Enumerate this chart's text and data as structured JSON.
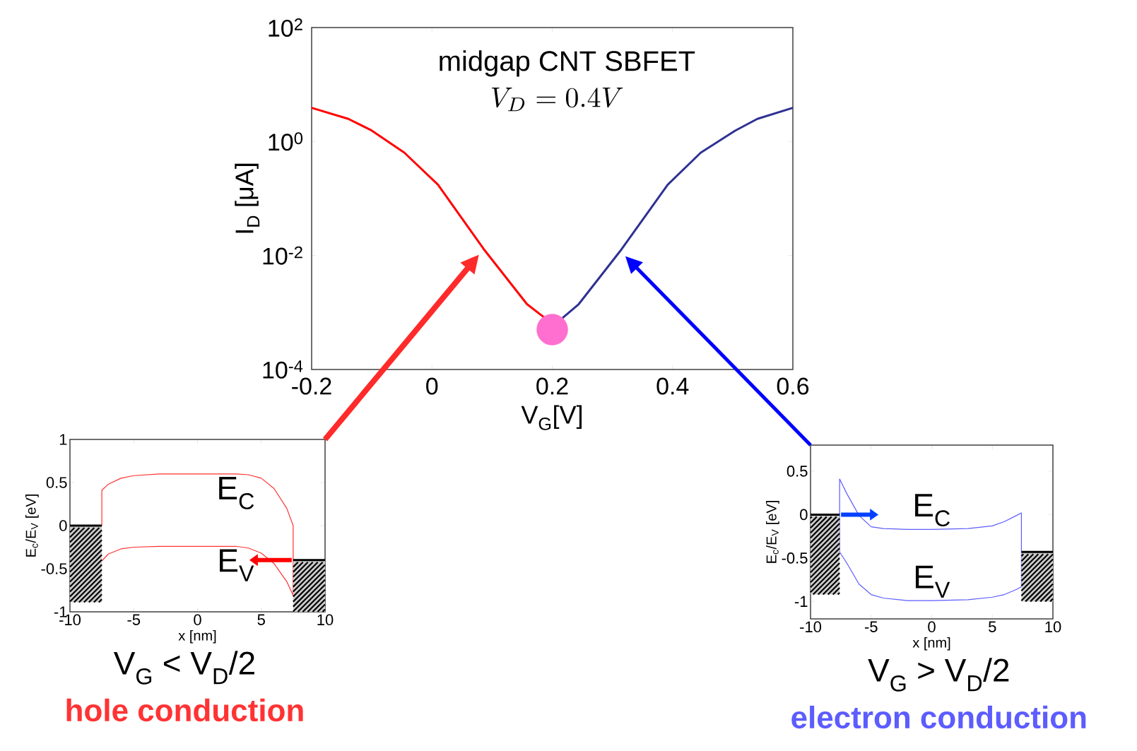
{
  "chart_data": [
    {
      "type": "line",
      "title": "midgap CNT SBFET",
      "xlabel": "V$_{G}$[V]",
      "ylabel": "I$_{D}$ [μA]",
      "log": "y",
      "annotations": [
        "V_D = 0.4V"
      ],
      "xlim": [
        -0.2,
        0.6
      ],
      "xticks": [
        -0.2,
        0,
        0.2,
        0.4,
        0.6
      ],
      "ylim": [
        0.0001,
        100
      ],
      "yticks": [
        {
          "value": 0.0001,
          "label": "10$^{-4}$"
        },
        {
          "value": 0.01,
          "label": "10$^{-2}$"
        },
        {
          "value": 1,
          "label": "10$^{0}$"
        },
        {
          "value": 100,
          "label": "10$^{2}$"
        }
      ],
      "series": [
        {
          "type": "line",
          "color": "#ff0000",
          "x": [
            -0.2,
            -0.139,
            -0.102,
            -0.046,
            0.01,
            0.086,
            0.158,
            0.188
          ],
          "values": [
            3.9,
            2.5,
            1.6,
            0.64,
            0.175,
            0.013,
            0.0014,
            0.0008
          ]
        },
        {
          "type": "line",
          "color": "#2e3192",
          "x": [
            0.217,
            0.244,
            0.313,
            0.392,
            0.447,
            0.504,
            0.541,
            0.6
          ],
          "values": [
            0.0008,
            0.0014,
            0.012,
            0.175,
            0.64,
            1.55,
            2.5,
            3.9
          ]
        },
        {
          "type": "scatter",
          "color": "#ff6fcf",
          "marker": "circle",
          "x": [
            0.2
          ],
          "values": [
            0.0005
          ]
        }
      ]
    },
    {
      "type": "line",
      "xlabel": "x [nm]",
      "ylabel": "E$_{c}$/E$_{V}$ [eV]",
      "annotations": [
        "V$_{G}$ < V$_{D}$/2",
        "hole conduction"
      ],
      "xlim": [
        -10,
        10
      ],
      "xticks": [
        -10,
        -5,
        0,
        5,
        10
      ],
      "ylim": [
        -1,
        1
      ],
      "yticks": [
        -1,
        -0.5,
        0,
        0.5,
        1
      ],
      "series": [
        {
          "name": "E$_{C}$",
          "color": "#ff3333",
          "x": [
            -7.5,
            -7.5,
            -7,
            -6,
            -5,
            -3,
            0,
            3,
            4,
            5,
            6,
            7,
            7.5,
            7.5
          ],
          "values": [
            0,
            0.41,
            0.48,
            0.55,
            0.58,
            0.6,
            0.6,
            0.6,
            0.59,
            0.55,
            0.43,
            0.2,
            0,
            -0.82
          ]
        },
        {
          "name": "E$_{V}$",
          "color": "#ff3333",
          "x": [
            -7.5,
            -7,
            -6,
            -5,
            -3,
            0,
            3,
            4,
            5,
            6,
            7,
            7.5
          ],
          "values": [
            -0.41,
            -0.33,
            -0.27,
            -0.25,
            -0.24,
            -0.24,
            -0.24,
            -0.26,
            -0.32,
            -0.44,
            -0.65,
            -0.81
          ]
        },
        {
          "color": "#000000",
          "x": [
            -10,
            -7.5
          ],
          "values": [
            0,
            0
          ],
          "lower": [
            -0.89,
            -0.89
          ],
          "upper": [
            0,
            0
          ]
        },
        {
          "color": "#000000",
          "x": [
            7.5,
            10
          ],
          "values": [
            -0.4,
            -0.4
          ],
          "lower": [
            -1,
            -1
          ],
          "upper": [
            -0.4,
            -0.4
          ]
        }
      ]
    },
    {
      "type": "line",
      "xlabel": "x [nm]",
      "ylabel": "E$_{c}$/E$_{V}$ [eV]",
      "annotations": [
        "V$_{G}$ > V$_{D}$/2",
        "electron conduction"
      ],
      "xlim": [
        -10,
        10
      ],
      "xticks": [
        -10,
        -5,
        0,
        5,
        10
      ],
      "ylim": [
        -1.2,
        0.8
      ],
      "yticks": [
        -1,
        -0.5,
        0,
        0.5
      ],
      "series": [
        {
          "name": "E$_{C}$",
          "color": "#5c5cff",
          "x": [
            -7.6,
            -7.6,
            -7,
            -6,
            -5,
            -4,
            -2,
            0,
            3,
            5,
            6,
            7,
            7.4,
            7.4
          ],
          "values": [
            -0.43,
            0.41,
            0.24,
            -0.01,
            -0.14,
            -0.16,
            -0.17,
            -0.17,
            -0.16,
            -0.13,
            -0.08,
            -0.01,
            0.02,
            -0.83
          ]
        },
        {
          "name": "E$_{V}$",
          "color": "#5c5cff",
          "x": [
            -7.6,
            -7,
            -6,
            -5,
            -4,
            -2,
            0,
            3,
            5,
            6,
            7,
            7.4
          ],
          "values": [
            -0.43,
            -0.56,
            -0.8,
            -0.92,
            -0.96,
            -0.99,
            -0.99,
            -0.98,
            -0.95,
            -0.92,
            -0.86,
            -0.83
          ]
        },
        {
          "color": "#000000",
          "x": [
            -10,
            -7.6
          ],
          "values": [
            0,
            0
          ],
          "lower": [
            -0.92,
            -0.92
          ],
          "upper": [
            0,
            0
          ]
        },
        {
          "color": "#000000",
          "x": [
            7.4,
            10
          ],
          "values": [
            -0.43,
            -0.43
          ],
          "lower": [
            -1,
            -1
          ],
          "upper": [
            -0.43,
            -0.43
          ]
        }
      ]
    }
  ]
}
